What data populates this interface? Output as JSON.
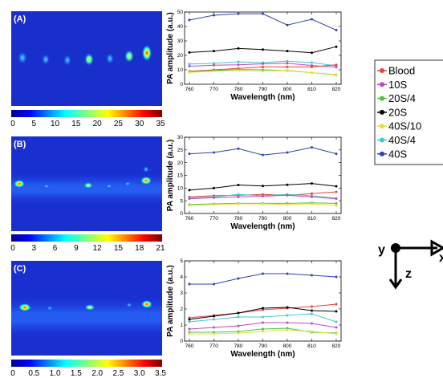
{
  "panels": [
    {
      "label": "(A)",
      "colorbar_ticks": [
        "0",
        "5",
        "10",
        "15",
        "20",
        "25",
        "30",
        "35"
      ]
    },
    {
      "label": "(B)",
      "colorbar_ticks": [
        "0",
        "3",
        "6",
        "9",
        "12",
        "15",
        "18",
        "21"
      ]
    },
    {
      "label": "(C)",
      "colorbar_ticks": [
        "0",
        "0.5",
        "1.0",
        "1.5",
        "2.0",
        "2.5",
        "3.0",
        "3.5"
      ]
    }
  ],
  "colors": {
    "Blood": "#e8403a",
    "10S": "#c048c0",
    "20S/4": "#50c040",
    "20S": "#000000",
    "40S/10": "#e8e030",
    "40S/4": "#40c8d0",
    "40S": "#3040b0"
  },
  "legend": {
    "entries": [
      "Blood",
      "10S",
      "20S/4",
      "20S",
      "40S/10",
      "40S/4",
      "40S"
    ]
  },
  "axes_glyph": {
    "y": "y",
    "z": "z",
    "x": "x"
  },
  "chart_data": [
    {
      "type": "line",
      "xlabel": "Wavelength (nm)",
      "ylabel": "PA amplitude (a.u.)",
      "x": [
        760,
        770,
        780,
        790,
        800,
        810,
        820
      ],
      "xticks": [
        "760",
        "770",
        "780",
        "790",
        "800",
        "810",
        "820"
      ],
      "ylim": [
        0,
        50
      ],
      "yticks": [
        "0",
        "10",
        "20",
        "30",
        "40",
        "50"
      ],
      "series": [
        {
          "name": "40S",
          "values": [
            44.5,
            47.8,
            48.8,
            48.8,
            41.0,
            45.0,
            37.5
          ]
        },
        {
          "name": "20S",
          "values": [
            22.0,
            23.0,
            24.8,
            24.0,
            23.0,
            21.8,
            26.0
          ]
        },
        {
          "name": "40S/4",
          "values": [
            14.0,
            14.5,
            15.5,
            15.0,
            16.0,
            15.0,
            12.8
          ]
        },
        {
          "name": "10S",
          "values": [
            12.5,
            13.2,
            13.5,
            14.2,
            14.5,
            13.0,
            11.8
          ]
        },
        {
          "name": "Blood",
          "values": [
            9.0,
            10.0,
            11.0,
            12.0,
            12.0,
            12.0,
            13.5
          ]
        },
        {
          "name": "20S/4",
          "values": [
            8.8,
            9.5,
            10.2,
            10.0,
            9.5,
            8.0,
            6.5
          ]
        },
        {
          "name": "40S/10",
          "values": [
            8.2,
            9.0,
            9.5,
            9.0,
            9.8,
            8.0,
            6.8
          ]
        }
      ]
    },
    {
      "type": "line",
      "xlabel": "Wavelength (nm)",
      "ylabel": "PA amplitude (a.u.)",
      "x": [
        760,
        770,
        780,
        790,
        800,
        810,
        820
      ],
      "xticks": [
        "760",
        "770",
        "780",
        "790",
        "800",
        "810",
        "820"
      ],
      "ylim": [
        0,
        30
      ],
      "yticks": [
        "0",
        "5",
        "10",
        "15",
        "20",
        "25",
        "30"
      ],
      "series": [
        {
          "name": "40S",
          "values": [
            23.5,
            24.0,
            25.5,
            23.0,
            24.0,
            26.0,
            23.5
          ]
        },
        {
          "name": "20S",
          "values": [
            9.2,
            10.0,
            11.2,
            10.8,
            11.3,
            11.8,
            10.7
          ]
        },
        {
          "name": "Blood",
          "values": [
            6.5,
            7.0,
            7.2,
            7.5,
            7.2,
            7.8,
            8.5
          ]
        },
        {
          "name": "40S/4",
          "values": [
            6.2,
            6.5,
            7.5,
            7.0,
            7.5,
            7.0,
            6.0
          ]
        },
        {
          "name": "10S",
          "values": [
            5.8,
            6.2,
            6.5,
            6.8,
            7.2,
            6.5,
            5.8
          ]
        },
        {
          "name": "20S/4",
          "values": [
            3.5,
            3.8,
            4.0,
            4.0,
            4.0,
            4.2,
            4.0
          ]
        },
        {
          "name": "40S/10",
          "values": [
            3.2,
            3.5,
            3.8,
            3.8,
            3.5,
            3.8,
            3.2
          ]
        }
      ]
    },
    {
      "type": "line",
      "xlabel": "Wavelength (nm)",
      "ylabel": "PA amplitude (a.u.)",
      "x": [
        760,
        770,
        780,
        790,
        800,
        810,
        820
      ],
      "xticks": [
        "760",
        "770",
        "780",
        "790",
        "800",
        "810",
        "820"
      ],
      "ylim": [
        0,
        5
      ],
      "yticks": [
        "0",
        "1",
        "2",
        "3",
        "4",
        "5"
      ],
      "series": [
        {
          "name": "40S",
          "values": [
            3.55,
            3.55,
            3.9,
            4.2,
            4.2,
            4.1,
            4.0
          ]
        },
        {
          "name": "Blood",
          "values": [
            1.45,
            1.6,
            1.75,
            1.95,
            2.05,
            2.15,
            2.3
          ]
        },
        {
          "name": "20S",
          "values": [
            1.35,
            1.55,
            1.75,
            2.05,
            2.1,
            1.9,
            1.85
          ]
        },
        {
          "name": "40S/4",
          "values": [
            1.2,
            1.35,
            1.5,
            1.5,
            1.6,
            1.7,
            1.2
          ]
        },
        {
          "name": "10S",
          "values": [
            0.75,
            0.85,
            0.95,
            1.15,
            1.15,
            1.1,
            0.85
          ]
        },
        {
          "name": "20S/4",
          "values": [
            0.55,
            0.55,
            0.6,
            0.75,
            0.8,
            0.55,
            0.5
          ]
        },
        {
          "name": "40S/10",
          "values": [
            0.45,
            0.45,
            0.5,
            0.6,
            0.7,
            0.6,
            0.45
          ]
        }
      ]
    }
  ]
}
